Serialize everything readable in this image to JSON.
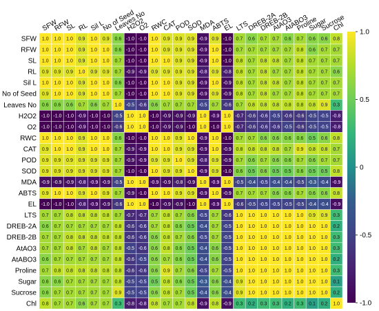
{
  "chart_data": {
    "type": "heatmap",
    "title": "",
    "xlabel": "",
    "ylabel": "",
    "colorbar": {
      "min": -1.0,
      "max": 1.0,
      "ticks": [
        1.0,
        0.5,
        0,
        -0.5,
        -1.0
      ],
      "tick_labels": [
        "1.0",
        "0.5",
        "0",
        "-0.5",
        "-1.0"
      ],
      "colormap": "viridis"
    },
    "rows": [
      "SFW",
      "RFW",
      "SL",
      "RL",
      "Sil L",
      "No of Seed",
      "Leaves No",
      "H2O2",
      "O2",
      "RWC",
      "CAT",
      "POD",
      "SOD",
      "MDA",
      "ABTS",
      "EL",
      "LTS",
      "DREB-2A",
      "DREB-2B",
      "AtAO3",
      "AtABO3",
      "Proline",
      "Sugar",
      "Sucrose",
      "Chl"
    ],
    "columns": [
      "SFW",
      "RFW",
      "SL",
      "RL",
      "Sil L",
      "No of Seed",
      "Leaves No",
      "H2O2",
      "O2",
      "RWC",
      "CAT",
      "POD",
      "SOD",
      "MDA",
      "ABTS",
      "EL",
      "LTS",
      "DREB-2A",
      "DREB-2B",
      "AtAO3",
      "AtABO3",
      "Proline",
      "Sugar",
      "Sucrose",
      "Chl"
    ],
    "values": [
      [
        1.0,
        1.0,
        1.0,
        0.9,
        1.0,
        0.9,
        0.6,
        -1.0,
        -1.0,
        1.0,
        0.9,
        0.9,
        0.9,
        -0.9,
        0.9,
        -1.0,
        0.7,
        0.6,
        0.7,
        0.7,
        0.6,
        0.7,
        0.6,
        0.6,
        0.8
      ],
      [
        1.0,
        1.0,
        1.0,
        0.9,
        1.0,
        1.0,
        0.6,
        -1.0,
        -1.0,
        1.0,
        0.9,
        0.9,
        0.9,
        -0.9,
        1.0,
        -1.0,
        0.7,
        0.7,
        0.7,
        0.7,
        0.7,
        0.8,
        0.6,
        0.7,
        0.7
      ],
      [
        1.0,
        1.0,
        1.0,
        0.9,
        1.0,
        1.0,
        0.7,
        -1.0,
        -1.0,
        1.0,
        1.0,
        0.9,
        0.9,
        -0.9,
        1.0,
        -1.0,
        0.8,
        0.7,
        0.8,
        0.8,
        0.7,
        0.8,
        0.7,
        0.7,
        0.7
      ],
      [
        0.9,
        0.9,
        0.9,
        1.0,
        0.9,
        0.9,
        0.7,
        -0.9,
        -0.9,
        0.9,
        0.9,
        0.9,
        0.9,
        -0.8,
        0.9,
        -0.8,
        0.8,
        0.7,
        0.8,
        0.7,
        0.7,
        0.8,
        0.7,
        0.7,
        0.6
      ],
      [
        1.0,
        1.0,
        1.0,
        0.9,
        1.0,
        1.0,
        0.6,
        -1.0,
        -1.0,
        1.0,
        1.0,
        0.9,
        0.9,
        -0.9,
        1.0,
        -0.9,
        0.8,
        0.7,
        0.8,
        0.8,
        0.7,
        0.8,
        0.7,
        0.7,
        0.7
      ],
      [
        0.9,
        1.0,
        1.0,
        0.9,
        1.0,
        1.0,
        0.7,
        -1.0,
        -1.0,
        1.0,
        1.0,
        0.9,
        0.9,
        -0.9,
        0.9,
        -0.9,
        0.8,
        0.7,
        0.8,
        0.7,
        0.7,
        0.8,
        0.7,
        0.7,
        0.7
      ],
      [
        0.6,
        0.6,
        0.6,
        0.7,
        0.6,
        0.7,
        1.0,
        -0.5,
        -0.6,
        0.6,
        0.7,
        0.7,
        0.7,
        -0.5,
        0.7,
        -0.6,
        0.7,
        0.8,
        0.8,
        0.8,
        0.8,
        0.8,
        0.8,
        0.9,
        0.3
      ],
      [
        -1.0,
        -1.0,
        -1.0,
        -0.9,
        -1.0,
        -1.0,
        -0.5,
        1.0,
        1.0,
        -1.0,
        -0.9,
        -0.9,
        -0.9,
        1.0,
        -0.9,
        1.0,
        -0.7,
        -0.6,
        -0.6,
        -0.5,
        -0.6,
        -0.6,
        -0.5,
        -0.5,
        -0.8
      ],
      [
        -1.0,
        -1.0,
        -1.0,
        -0.9,
        -1.0,
        -1.0,
        -0.6,
        1.0,
        1.0,
        -1.0,
        -0.9,
        -0.9,
        -1.0,
        1.0,
        -1.0,
        1.0,
        -0.7,
        -0.6,
        -0.6,
        -0.6,
        -0.5,
        -0.6,
        -0.5,
        -0.5,
        -0.8
      ],
      [
        1.0,
        1.0,
        1.0,
        0.9,
        1.0,
        1.0,
        0.6,
        -1.0,
        -1.0,
        1.0,
        1.0,
        0.9,
        1.0,
        -0.9,
        1.0,
        -1.0,
        0.7,
        0.7,
        0.6,
        0.6,
        0.6,
        0.6,
        0.5,
        0.6,
        0.8
      ],
      [
        0.9,
        1.0,
        1.0,
        0.9,
        1.0,
        1.0,
        0.7,
        -0.9,
        -0.9,
        1.0,
        1.0,
        0.9,
        0.9,
        -0.9,
        1.0,
        -0.9,
        0.8,
        0.8,
        0.8,
        0.8,
        0.7,
        0.9,
        0.8,
        0.8,
        0.7
      ],
      [
        0.9,
        0.9,
        0.9,
        0.9,
        0.9,
        0.9,
        0.7,
        -0.9,
        -0.9,
        0.9,
        0.9,
        1.0,
        0.9,
        -0.8,
        0.9,
        -0.9,
        0.7,
        0.6,
        0.7,
        0.6,
        0.6,
        0.7,
        0.6,
        0.7,
        0.7
      ],
      [
        0.9,
        0.9,
        0.9,
        0.9,
        0.9,
        0.9,
        0.7,
        -1.0,
        -1.0,
        1.0,
        0.9,
        0.9,
        1.0,
        -0.9,
        0.9,
        -1.0,
        0.6,
        0.5,
        0.6,
        0.5,
        0.5,
        0.6,
        0.5,
        0.5,
        0.8
      ],
      [
        -0.9,
        -0.9,
        -0.9,
        -0.8,
        -0.9,
        -0.9,
        -0.5,
        1.0,
        1.0,
        -0.9,
        -0.9,
        -0.8,
        -0.9,
        1.0,
        -0.9,
        1.0,
        -0.5,
        -0.4,
        -0.5,
        -0.4,
        -0.4,
        -0.5,
        -0.3,
        -0.4,
        -0.9
      ],
      [
        0.9,
        1.0,
        1.0,
        0.9,
        1.0,
        0.9,
        0.7,
        -0.9,
        -1.0,
        1.0,
        1.0,
        0.9,
        0.9,
        -0.9,
        1.0,
        -0.9,
        0.7,
        0.7,
        0.7,
        0.6,
        0.6,
        0.7,
        0.6,
        0.6,
        0.8
      ],
      [
        -1.0,
        -1.0,
        -1.0,
        -0.8,
        -0.9,
        -0.9,
        -0.6,
        1.0,
        1.0,
        -1.0,
        -0.9,
        -0.9,
        -1.0,
        1.0,
        -0.9,
        1.0,
        -0.6,
        -0.5,
        -0.5,
        -0.5,
        -0.5,
        -0.5,
        -0.4,
        -0.4,
        -0.9
      ],
      [
        0.7,
        0.7,
        0.8,
        0.8,
        0.8,
        0.8,
        0.7,
        -0.7,
        -0.7,
        0.7,
        0.8,
        0.7,
        0.6,
        -0.5,
        0.7,
        -0.6,
        1.0,
        1.0,
        1.0,
        1.0,
        1.0,
        1.0,
        0.9,
        0.9,
        0.3
      ],
      [
        0.6,
        0.7,
        0.7,
        0.7,
        0.7,
        0.7,
        0.8,
        -0.6,
        -0.6,
        0.7,
        0.8,
        0.6,
        0.5,
        -0.4,
        0.7,
        -0.5,
        1.0,
        1.0,
        1.0,
        1.0,
        1.0,
        1.0,
        1.0,
        1.0,
        0.2
      ],
      [
        0.7,
        0.7,
        0.8,
        0.8,
        0.8,
        0.8,
        0.8,
        -0.6,
        -0.6,
        0.6,
        0.8,
        0.7,
        0.6,
        -0.5,
        0.7,
        -0.5,
        1.0,
        1.0,
        1.0,
        1.0,
        1.0,
        1.0,
        1.0,
        1.0,
        0.3
      ],
      [
        0.7,
        0.7,
        0.8,
        0.7,
        0.8,
        0.7,
        0.8,
        -0.5,
        -0.6,
        0.6,
        0.8,
        0.6,
        0.5,
        -0.4,
        0.6,
        -0.5,
        1.0,
        1.0,
        1.0,
        1.0,
        1.0,
        1.0,
        1.0,
        1.0,
        0.3
      ],
      [
        0.6,
        0.7,
        0.7,
        0.7,
        0.7,
        0.7,
        0.8,
        -0.6,
        -0.5,
        0.6,
        0.7,
        0.6,
        0.5,
        -0.4,
        0.6,
        -0.5,
        1.0,
        1.0,
        1.0,
        1.0,
        1.0,
        1.0,
        1.0,
        1.0,
        0.2
      ],
      [
        0.7,
        0.8,
        0.8,
        0.8,
        0.8,
        0.8,
        0.8,
        -0.6,
        -0.6,
        0.6,
        0.9,
        0.7,
        0.6,
        -0.5,
        0.7,
        -0.5,
        1.0,
        1.0,
        1.0,
        1.0,
        1.0,
        1.0,
        1.0,
        1.0,
        0.3
      ],
      [
        0.6,
        0.6,
        0.7,
        0.7,
        0.7,
        0.7,
        0.8,
        -0.5,
        -0.5,
        0.5,
        0.8,
        0.6,
        0.5,
        -0.3,
        0.6,
        -0.4,
        0.9,
        1.0,
        1.0,
        1.0,
        1.0,
        1.0,
        1.0,
        1.0,
        0.1
      ],
      [
        0.6,
        0.7,
        0.7,
        0.7,
        0.7,
        0.7,
        0.9,
        -0.5,
        -0.5,
        0.6,
        0.8,
        0.7,
        0.5,
        -0.4,
        0.6,
        -0.4,
        0.9,
        1.0,
        1.0,
        1.0,
        1.0,
        1.0,
        1.0,
        1.0,
        0.2
      ],
      [
        0.8,
        0.7,
        0.7,
        0.6,
        0.7,
        0.7,
        0.3,
        -0.8,
        -0.8,
        0.8,
        0.7,
        0.7,
        0.8,
        -0.9,
        0.8,
        -0.9,
        0.3,
        0.2,
        0.3,
        0.3,
        0.2,
        0.3,
        0.1,
        0.2,
        1.0
      ]
    ],
    "grid": true,
    "legend": "right"
  }
}
